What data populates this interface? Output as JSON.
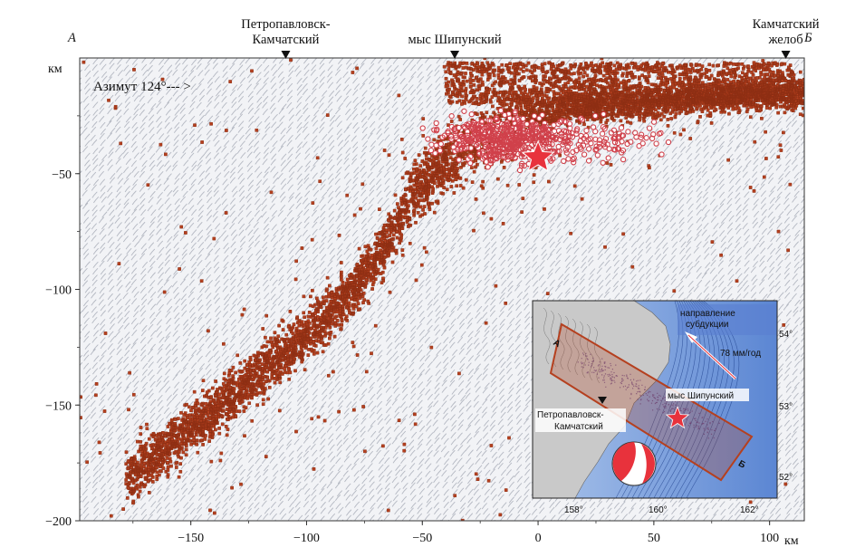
{
  "chart_data": {
    "type": "scatter",
    "title": "",
    "xlabel": "км",
    "ylabel": "км",
    "xlim": [
      -198,
      115
    ],
    "ylim": [
      -200,
      0
    ],
    "grid": false,
    "x_ticks": [
      -150,
      -100,
      -50,
      0,
      50,
      100
    ],
    "x_tick_labels": [
      "−150",
      "−100",
      "−50",
      "0",
      "50",
      "100"
    ],
    "y_ticks": [
      -50,
      -100,
      -150,
      -200
    ],
    "y_tick_labels": [
      "−50",
      "−100",
      "−150",
      "−200"
    ],
    "x_unit": "км",
    "y_unit": "км",
    "azimuth_label": "Азимут  124°--- >",
    "profile_ends": {
      "start": "А",
      "end": "Б"
    },
    "top_markers": [
      {
        "name_lines": [
          "Петропавловск-",
          "Камчатский"
        ],
        "x": -109
      },
      {
        "name_lines": [
          "мыс Шипунский"
        ],
        "x": -36
      },
      {
        "name_lines": [
          "Камчатский",
          "желоб"
        ],
        "x": 107
      }
    ],
    "series": [
      {
        "color": "#b5401f",
        "marker": "square",
        "band": [
          [
            -175,
            -180
          ],
          [
            -150,
            -160
          ],
          [
            -125,
            -140
          ],
          [
            -100,
            -120
          ],
          [
            -80,
            -100
          ],
          [
            -65,
            -80
          ],
          [
            -55,
            -60
          ],
          [
            -40,
            -45
          ],
          [
            -25,
            -35
          ],
          [
            -10,
            -28
          ],
          [
            10,
            -22
          ],
          [
            30,
            -20
          ],
          [
            60,
            -18
          ],
          [
            90,
            -16
          ],
          [
            112,
            -15
          ]
        ]
      },
      {
        "color": "#ffffff",
        "edge": "#c0392b",
        "marker": "circle",
        "cluster_center": [
          -15,
          -35
        ]
      }
    ],
    "mainshock": {
      "x": 0,
      "y": -43,
      "color": "#e8323c",
      "marker": "star"
    },
    "inset": {
      "labels": {
        "subduction": [
          "направление",
          "субдукции"
        ],
        "rate": "78 мм/год",
        "cape": "мыс Шипунский",
        "city": [
          "Петропавловск-",
          "Камчатский"
        ],
        "end_a": "А",
        "end_b": "Б"
      },
      "lon_ticks": [
        "158°",
        "160°",
        "162°"
      ],
      "lat_ticks": [
        "54°",
        "53°",
        "52°"
      ]
    }
  }
}
